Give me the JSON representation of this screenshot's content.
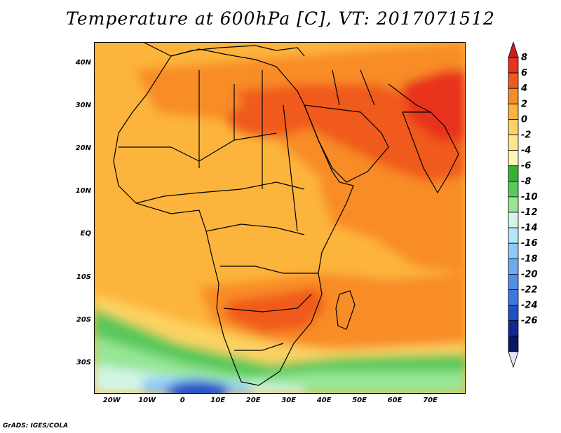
{
  "title": "Temperature at 600hPa [C], VT: 2017071512",
  "credit": "GrADS: IGES/COLA",
  "map": {
    "lon_range": [
      -25,
      80
    ],
    "lat_range": [
      -37,
      45
    ],
    "lat_labels": [
      {
        "lat": 40,
        "text": "40N"
      },
      {
        "lat": 30,
        "text": "30N"
      },
      {
        "lat": 20,
        "text": "20N"
      },
      {
        "lat": 10,
        "text": "10N"
      },
      {
        "lat": 0,
        "text": "EQ"
      },
      {
        "lat": -10,
        "text": "10S"
      },
      {
        "lat": -20,
        "text": "20S"
      },
      {
        "lat": -30,
        "text": "30S"
      }
    ],
    "lon_labels": [
      {
        "lon": -20,
        "text": "20W"
      },
      {
        "lon": -10,
        "text": "10W"
      },
      {
        "lon": 0,
        "text": "0"
      },
      {
        "lon": 10,
        "text": "10E"
      },
      {
        "lon": 20,
        "text": "20E"
      },
      {
        "lon": 30,
        "text": "30E"
      },
      {
        "lon": 40,
        "text": "40E"
      },
      {
        "lon": 50,
        "text": "50E"
      },
      {
        "lon": 60,
        "text": "60E"
      },
      {
        "lon": 70,
        "text": "70E"
      }
    ]
  },
  "colorbar": {
    "labels": [
      "8",
      "6",
      "4",
      "2",
      "0",
      "-2",
      "-4",
      "-6",
      "-8",
      "-10",
      "-12",
      "-14",
      "-16",
      "-18",
      "-20",
      "-22",
      "-24",
      "-26"
    ],
    "colors": [
      "#e8321e",
      "#f05a1e",
      "#f88c28",
      "#fcb43c",
      "#fcd264",
      "#fce68c",
      "#fcf6b4",
      "#32b432",
      "#5ac85a",
      "#96e696",
      "#d2f5e6",
      "#b4e6fa",
      "#8cc8fa",
      "#6eaaf0",
      "#5090e6",
      "#3c78dc",
      "#2050c8",
      "#102896",
      "#0a1464"
    ],
    "top_arrow_color": "#c81e1e",
    "bottom_arrow_color": "#e6e6fa"
  }
}
